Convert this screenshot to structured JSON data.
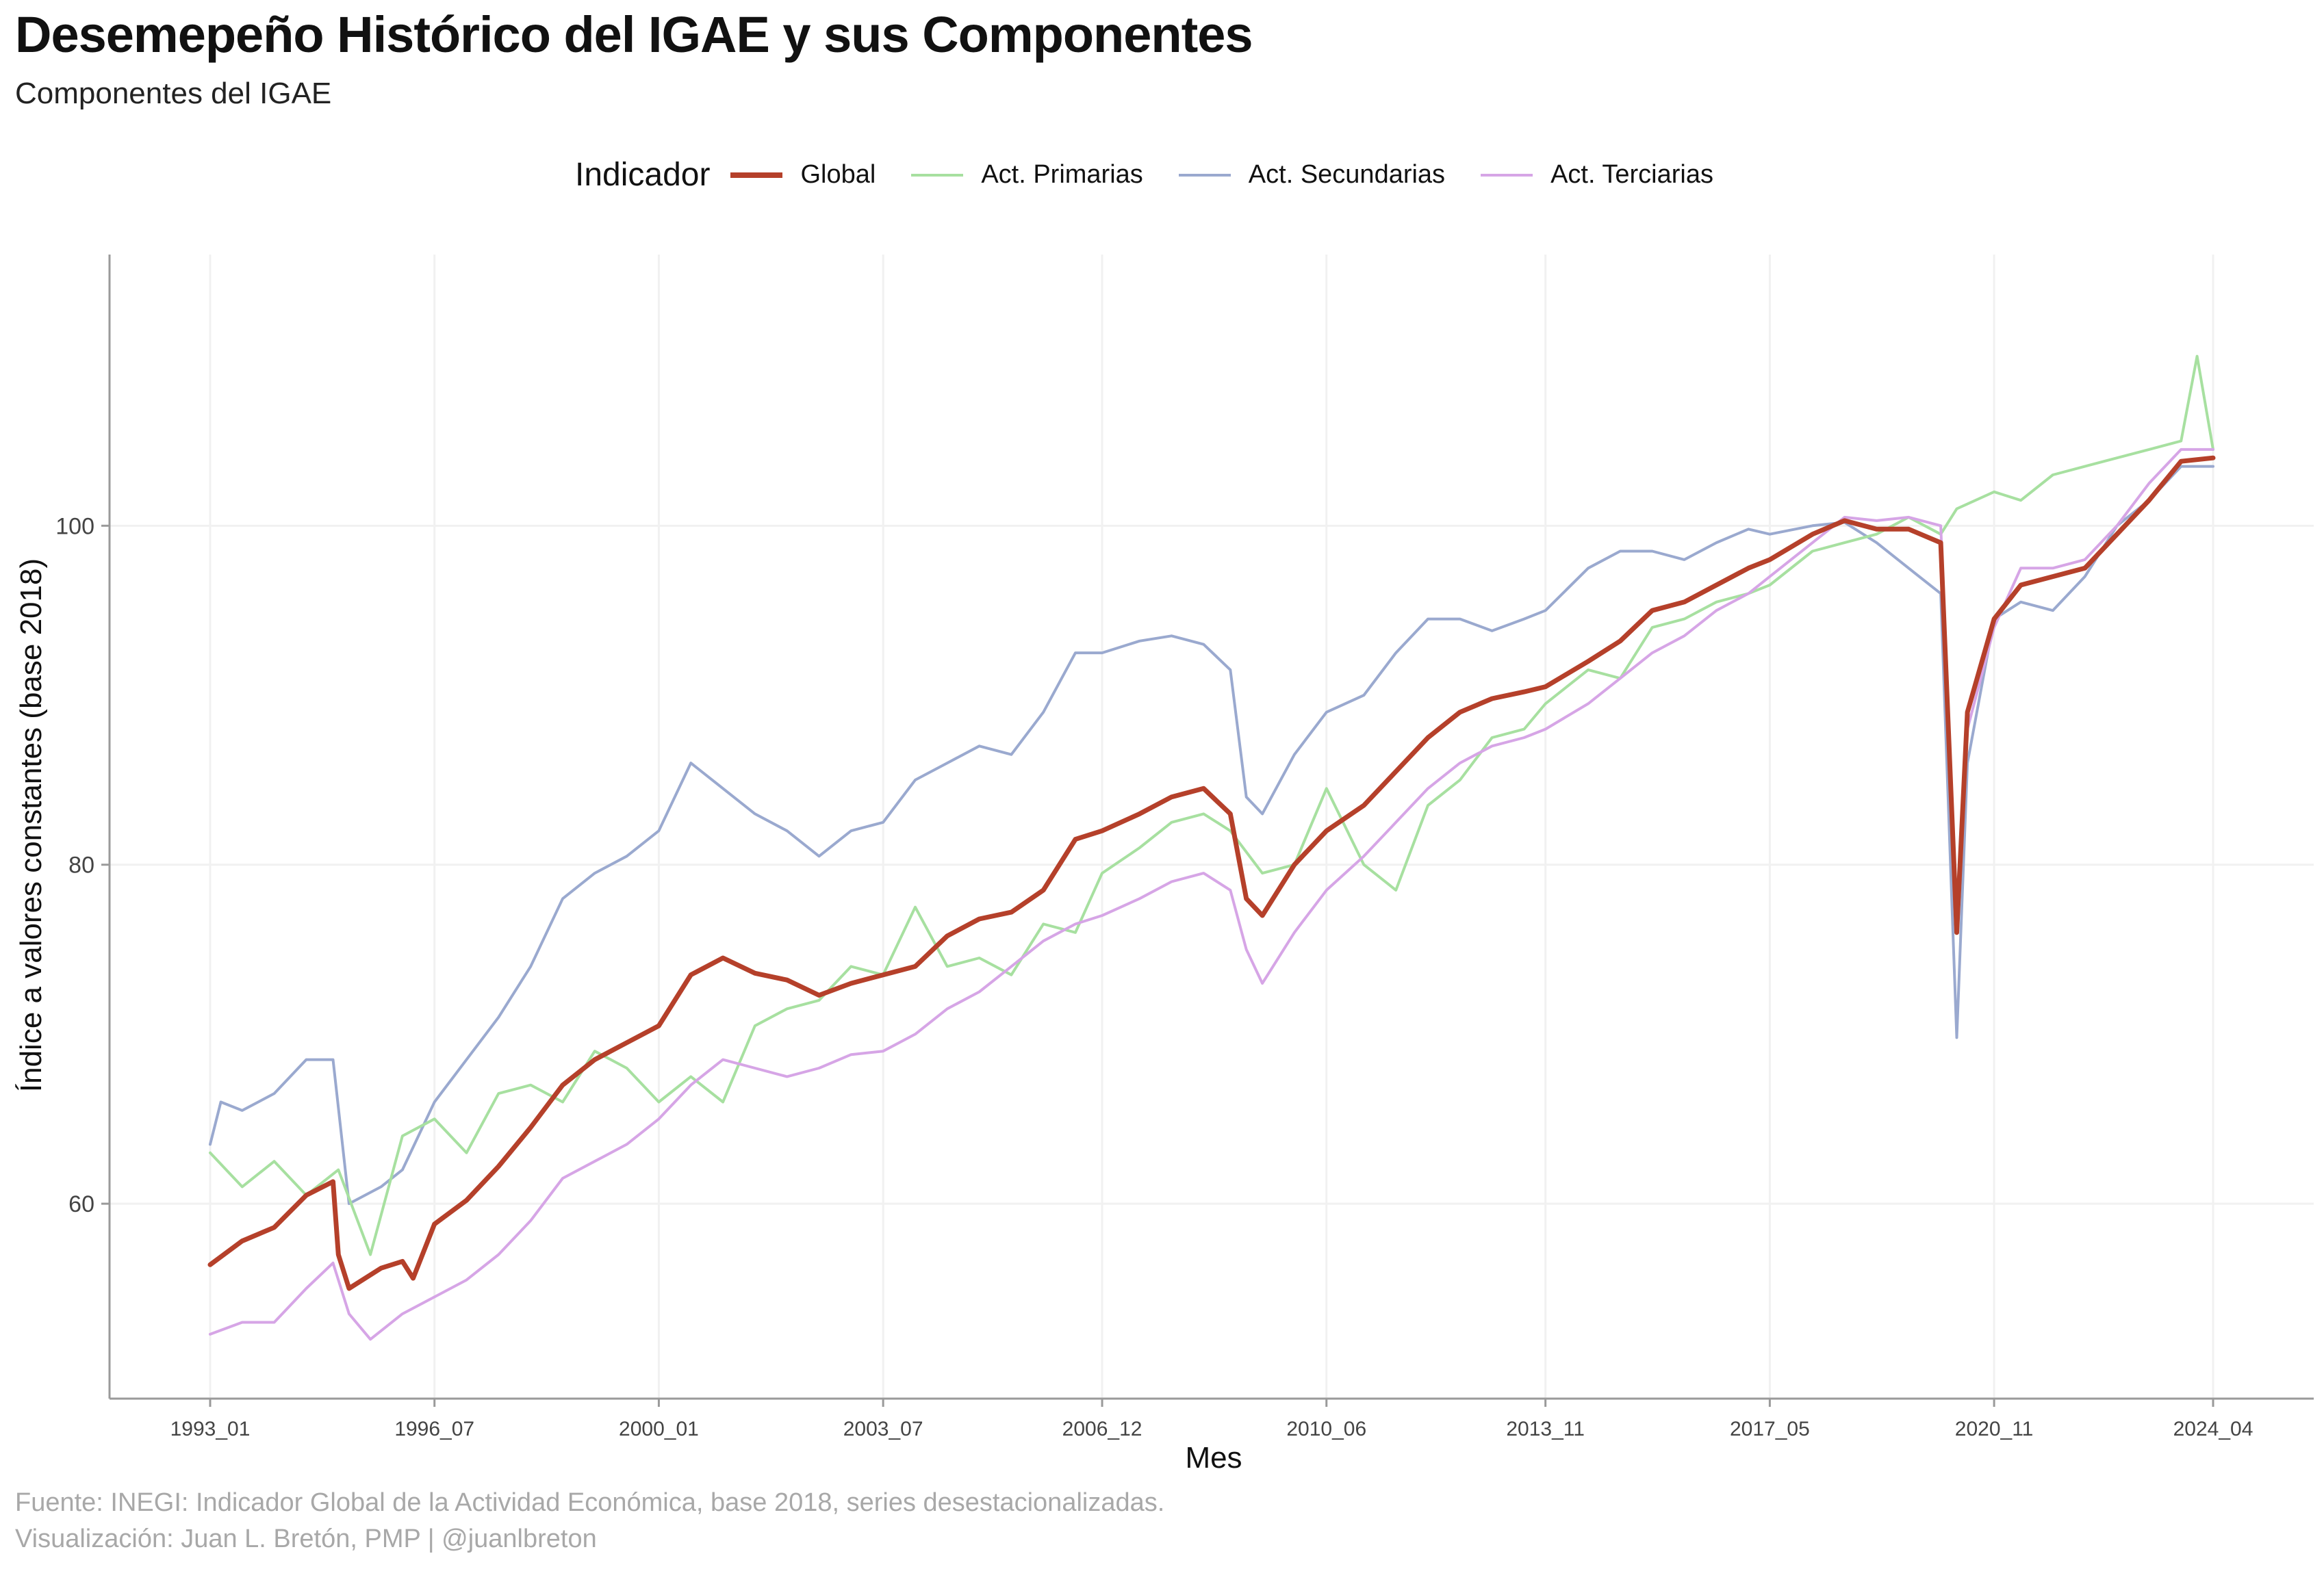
{
  "title": "Desemepeño Histórico del IGAE y sus Componentes",
  "subtitle": "Componentes del IGAE",
  "caption": {
    "line1": "Fuente: INEGI: Indicador Global de la Actividad Económica, base 2018, series desestacionalizadas.",
    "line2": "Visualización: Juan L. Bretón, PMP | @juanlbreton"
  },
  "legend": {
    "title": "Indicador",
    "items": [
      {
        "label": "Global",
        "color": "#b5402a"
      },
      {
        "label": "Act. Primarias",
        "color": "#a7e0a0"
      },
      {
        "label": "Act. Secundarias",
        "color": "#9aa9cf"
      },
      {
        "label": "Act. Terciarias",
        "color": "#d6a5e6"
      }
    ]
  },
  "chart_data": {
    "type": "line",
    "xlabel": "Mes",
    "ylabel": "Índice a valores constantes (base 2018)",
    "x_ticks": [
      "1993_01",
      "1996_07",
      "2000_01",
      "2003_07",
      "2006_12",
      "2010_06",
      "2013_11",
      "2017_05",
      "2020_11",
      "2024_04"
    ],
    "y_ticks": [
      60,
      80,
      100
    ],
    "xlim": [
      "1993_01",
      "2024_04"
    ],
    "ylim": [
      48.5,
      116
    ],
    "grid": true,
    "legend_position": "top",
    "series": [
      {
        "name": "Global",
        "color": "#b5402a",
        "points": [
          [
            "1993_01",
            56.4
          ],
          [
            "1993_07",
            57.8
          ],
          [
            "1994_01",
            58.6
          ],
          [
            "1994_07",
            60.5
          ],
          [
            "1994_12",
            61.3
          ],
          [
            "1995_01",
            57.0
          ],
          [
            "1995_03",
            55.0
          ],
          [
            "1995_09",
            56.2
          ],
          [
            "1996_01",
            56.6
          ],
          [
            "1996_03",
            55.6
          ],
          [
            "1996_07",
            58.8
          ],
          [
            "1997_01",
            60.2
          ],
          [
            "1997_07",
            62.2
          ],
          [
            "1998_01",
            64.5
          ],
          [
            "1998_07",
            67.0
          ],
          [
            "1999_01",
            68.5
          ],
          [
            "1999_07",
            69.5
          ],
          [
            "2000_01",
            70.5
          ],
          [
            "2000_07",
            73.5
          ],
          [
            "2001_01",
            74.5
          ],
          [
            "2001_07",
            73.6
          ],
          [
            "2002_01",
            73.2
          ],
          [
            "2002_07",
            72.3
          ],
          [
            "2003_01",
            73.0
          ],
          [
            "2003_07",
            73.5
          ],
          [
            "2004_01",
            74.0
          ],
          [
            "2004_07",
            75.8
          ],
          [
            "2005_01",
            76.8
          ],
          [
            "2005_07",
            77.2
          ],
          [
            "2006_01",
            78.5
          ],
          [
            "2006_07",
            81.5
          ],
          [
            "2006_12",
            82.0
          ],
          [
            "2007_07",
            83.0
          ],
          [
            "2008_01",
            84.0
          ],
          [
            "2008_07",
            84.5
          ],
          [
            "2008_12",
            83.0
          ],
          [
            "2009_03",
            78.0
          ],
          [
            "2009_06",
            77.0
          ],
          [
            "2009_12",
            80.0
          ],
          [
            "2010_06",
            82.0
          ],
          [
            "2011_01",
            83.5
          ],
          [
            "2011_07",
            85.5
          ],
          [
            "2012_01",
            87.5
          ],
          [
            "2012_07",
            89.0
          ],
          [
            "2013_01",
            89.8
          ],
          [
            "2013_07",
            90.2
          ],
          [
            "2013_11",
            90.5
          ],
          [
            "2014_07",
            92.0
          ],
          [
            "2015_01",
            93.2
          ],
          [
            "2015_07",
            95.0
          ],
          [
            "2016_01",
            95.5
          ],
          [
            "2016_07",
            96.5
          ],
          [
            "2017_01",
            97.5
          ],
          [
            "2017_05",
            98.0
          ],
          [
            "2018_01",
            99.5
          ],
          [
            "2018_07",
            100.3
          ],
          [
            "2019_01",
            99.8
          ],
          [
            "2019_07",
            99.8
          ],
          [
            "2020_01",
            99.0
          ],
          [
            "2020_04",
            76.0
          ],
          [
            "2020_06",
            89.0
          ],
          [
            "2020_11",
            94.5
          ],
          [
            "2021_04",
            96.5
          ],
          [
            "2021_10",
            97.0
          ],
          [
            "2022_04",
            97.5
          ],
          [
            "2022_10",
            99.5
          ],
          [
            "2023_04",
            101.5
          ],
          [
            "2023_10",
            103.8
          ],
          [
            "2024_04",
            104.0
          ]
        ]
      },
      {
        "name": "Act. Primarias",
        "color": "#a7e0a0",
        "points": [
          [
            "1993_01",
            63.0
          ],
          [
            "1993_07",
            61.0
          ],
          [
            "1994_01",
            62.5
          ],
          [
            "1994_07",
            60.5
          ],
          [
            "1995_01",
            62.0
          ],
          [
            "1995_07",
            57.0
          ],
          [
            "1996_01",
            64.0
          ],
          [
            "1996_07",
            65.0
          ],
          [
            "1997_01",
            63.0
          ],
          [
            "1997_07",
            66.5
          ],
          [
            "1998_01",
            67.0
          ],
          [
            "1998_07",
            66.0
          ],
          [
            "1999_01",
            69.0
          ],
          [
            "1999_07",
            68.0
          ],
          [
            "2000_01",
            66.0
          ],
          [
            "2000_07",
            67.5
          ],
          [
            "2001_01",
            66.0
          ],
          [
            "2001_07",
            70.5
          ],
          [
            "2002_01",
            71.5
          ],
          [
            "2002_07",
            72.0
          ],
          [
            "2003_01",
            74.0
          ],
          [
            "2003_07",
            73.5
          ],
          [
            "2004_01",
            77.5
          ],
          [
            "2004_07",
            74.0
          ],
          [
            "2005_01",
            74.5
          ],
          [
            "2005_07",
            73.5
          ],
          [
            "2006_01",
            76.5
          ],
          [
            "2006_07",
            76.0
          ],
          [
            "2006_12",
            79.5
          ],
          [
            "2007_07",
            81.0
          ],
          [
            "2008_01",
            82.5
          ],
          [
            "2008_07",
            83.0
          ],
          [
            "2008_12",
            82.0
          ],
          [
            "2009_06",
            79.5
          ],
          [
            "2009_12",
            80.0
          ],
          [
            "2010_06",
            84.5
          ],
          [
            "2011_01",
            80.0
          ],
          [
            "2011_07",
            78.5
          ],
          [
            "2012_01",
            83.5
          ],
          [
            "2012_07",
            85.0
          ],
          [
            "2013_01",
            87.5
          ],
          [
            "2013_07",
            88.0
          ],
          [
            "2013_11",
            89.5
          ],
          [
            "2014_07",
            91.5
          ],
          [
            "2015_01",
            91.0
          ],
          [
            "2015_07",
            94.0
          ],
          [
            "2016_01",
            94.5
          ],
          [
            "2016_07",
            95.5
          ],
          [
            "2017_01",
            96.0
          ],
          [
            "2017_05",
            96.5
          ],
          [
            "2018_01",
            98.5
          ],
          [
            "2018_07",
            99.0
          ],
          [
            "2019_01",
            99.5
          ],
          [
            "2019_07",
            100.5
          ],
          [
            "2020_01",
            99.5
          ],
          [
            "2020_04",
            101.0
          ],
          [
            "2020_11",
            102.0
          ],
          [
            "2021_04",
            101.5
          ],
          [
            "2021_10",
            103.0
          ],
          [
            "2022_04",
            103.5
          ],
          [
            "2022_10",
            104.0
          ],
          [
            "2023_04",
            104.5
          ],
          [
            "2023_10",
            105.0
          ],
          [
            "2024_01",
            110.0
          ],
          [
            "2024_04",
            104.5
          ]
        ]
      },
      {
        "name": "Act. Secundarias",
        "color": "#9aa9cf",
        "points": [
          [
            "1993_01",
            63.5
          ],
          [
            "1993_03",
            66.0
          ],
          [
            "1993_07",
            65.5
          ],
          [
            "1994_01",
            66.5
          ],
          [
            "1994_07",
            68.5
          ],
          [
            "1994_12",
            68.5
          ],
          [
            "1995_03",
            60.0
          ],
          [
            "1995_09",
            61.0
          ],
          [
            "1996_01",
            62.0
          ],
          [
            "1996_07",
            66.0
          ],
          [
            "1997_01",
            68.5
          ],
          [
            "1997_07",
            71.0
          ],
          [
            "1998_01",
            74.0
          ],
          [
            "1998_07",
            78.0
          ],
          [
            "1999_01",
            79.5
          ],
          [
            "1999_07",
            80.5
          ],
          [
            "2000_01",
            82.0
          ],
          [
            "2000_07",
            86.0
          ],
          [
            "2001_01",
            84.5
          ],
          [
            "2001_07",
            83.0
          ],
          [
            "2002_01",
            82.0
          ],
          [
            "2002_07",
            80.5
          ],
          [
            "2003_01",
            82.0
          ],
          [
            "2003_07",
            82.5
          ],
          [
            "2004_01",
            85.0
          ],
          [
            "2004_07",
            86.0
          ],
          [
            "2005_01",
            87.0
          ],
          [
            "2005_07",
            86.5
          ],
          [
            "2006_01",
            89.0
          ],
          [
            "2006_07",
            92.5
          ],
          [
            "2006_12",
            92.5
          ],
          [
            "2007_07",
            93.2
          ],
          [
            "2008_01",
            93.5
          ],
          [
            "2008_07",
            93.0
          ],
          [
            "2008_12",
            91.5
          ],
          [
            "2009_03",
            84.0
          ],
          [
            "2009_06",
            83.0
          ],
          [
            "2009_12",
            86.5
          ],
          [
            "2010_06",
            89.0
          ],
          [
            "2011_01",
            90.0
          ],
          [
            "2011_07",
            92.5
          ],
          [
            "2012_01",
            94.5
          ],
          [
            "2012_07",
            94.5
          ],
          [
            "2013_01",
            93.8
          ],
          [
            "2013_07",
            94.5
          ],
          [
            "2013_11",
            95.0
          ],
          [
            "2014_07",
            97.5
          ],
          [
            "2015_01",
            98.5
          ],
          [
            "2015_07",
            98.5
          ],
          [
            "2016_01",
            98.0
          ],
          [
            "2016_07",
            99.0
          ],
          [
            "2017_01",
            99.8
          ],
          [
            "2017_05",
            99.5
          ],
          [
            "2018_01",
            100.0
          ],
          [
            "2018_07",
            100.2
          ],
          [
            "2019_01",
            99.0
          ],
          [
            "2019_07",
            97.5
          ],
          [
            "2020_01",
            96.0
          ],
          [
            "2020_04",
            69.8
          ],
          [
            "2020_06",
            86.0
          ],
          [
            "2020_11",
            94.5
          ],
          [
            "2021_04",
            95.5
          ],
          [
            "2021_10",
            95.0
          ],
          [
            "2022_04",
            97.0
          ],
          [
            "2022_10",
            100.0
          ],
          [
            "2023_04",
            101.5
          ],
          [
            "2023_10",
            103.5
          ],
          [
            "2024_04",
            103.5
          ]
        ]
      },
      {
        "name": "Act. Terciarias",
        "color": "#d6a5e6",
        "points": [
          [
            "1993_01",
            52.3
          ],
          [
            "1993_07",
            53.0
          ],
          [
            "1994_01",
            53.0
          ],
          [
            "1994_07",
            55.0
          ],
          [
            "1994_12",
            56.5
          ],
          [
            "1995_03",
            53.5
          ],
          [
            "1995_07",
            52.0
          ],
          [
            "1996_01",
            53.5
          ],
          [
            "1996_07",
            54.5
          ],
          [
            "1997_01",
            55.5
          ],
          [
            "1997_07",
            57.0
          ],
          [
            "1998_01",
            59.0
          ],
          [
            "1998_07",
            61.5
          ],
          [
            "1999_01",
            62.5
          ],
          [
            "1999_07",
            63.5
          ],
          [
            "2000_01",
            65.0
          ],
          [
            "2000_07",
            67.0
          ],
          [
            "2001_01",
            68.5
          ],
          [
            "2001_07",
            68.0
          ],
          [
            "2002_01",
            67.5
          ],
          [
            "2002_07",
            68.0
          ],
          [
            "2003_01",
            68.8
          ],
          [
            "2003_07",
            69.0
          ],
          [
            "2004_01",
            70.0
          ],
          [
            "2004_07",
            71.5
          ],
          [
            "2005_01",
            72.5
          ],
          [
            "2005_07",
            74.0
          ],
          [
            "2006_01",
            75.5
          ],
          [
            "2006_07",
            76.5
          ],
          [
            "2006_12",
            77.0
          ],
          [
            "2007_07",
            78.0
          ],
          [
            "2008_01",
            79.0
          ],
          [
            "2008_07",
            79.5
          ],
          [
            "2008_12",
            78.5
          ],
          [
            "2009_03",
            75.0
          ],
          [
            "2009_06",
            73.0
          ],
          [
            "2009_12",
            76.0
          ],
          [
            "2010_06",
            78.5
          ],
          [
            "2011_01",
            80.5
          ],
          [
            "2011_07",
            82.5
          ],
          [
            "2012_01",
            84.5
          ],
          [
            "2012_07",
            86.0
          ],
          [
            "2013_01",
            87.0
          ],
          [
            "2013_07",
            87.5
          ],
          [
            "2013_11",
            88.0
          ],
          [
            "2014_07",
            89.5
          ],
          [
            "2015_01",
            91.0
          ],
          [
            "2015_07",
            92.5
          ],
          [
            "2016_01",
            93.5
          ],
          [
            "2016_07",
            95.0
          ],
          [
            "2017_01",
            96.0
          ],
          [
            "2017_05",
            97.0
          ],
          [
            "2018_01",
            99.0
          ],
          [
            "2018_07",
            100.5
          ],
          [
            "2019_01",
            100.3
          ],
          [
            "2019_07",
            100.5
          ],
          [
            "2020_01",
            100.0
          ],
          [
            "2020_04",
            77.0
          ],
          [
            "2020_06",
            88.0
          ],
          [
            "2020_11",
            94.0
          ],
          [
            "2021_04",
            97.5
          ],
          [
            "2021_10",
            97.5
          ],
          [
            "2022_04",
            98.0
          ],
          [
            "2022_10",
            100.0
          ],
          [
            "2023_04",
            102.5
          ],
          [
            "2023_10",
            104.5
          ],
          [
            "2024_04",
            104.5
          ]
        ]
      }
    ]
  }
}
